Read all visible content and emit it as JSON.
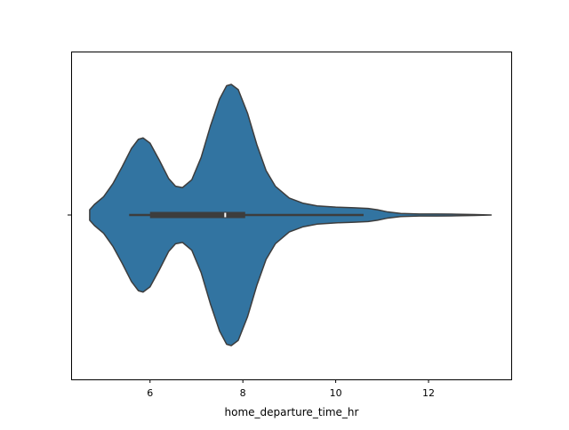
{
  "chart_data": {
    "type": "violin",
    "orientation": "horizontal",
    "title": "",
    "xlabel": "home_departure_time_hr",
    "ylabel": "",
    "xlim": [
      4.3,
      13.8
    ],
    "xticks": [
      6,
      8,
      10,
      12
    ],
    "xtick_labels": [
      "6",
      "8",
      "10",
      "12"
    ],
    "grid": false,
    "legend": "none",
    "colors": {
      "body": "#3274a1",
      "outline": "#3d3d3d",
      "box": "#3d3d3d",
      "median": "#ffffff"
    },
    "box": {
      "whisker_low": 5.55,
      "q1": 6.0,
      "median": 7.62,
      "q3": 8.05,
      "whisker_high": 10.6
    },
    "density_profile": [
      {
        "x": 4.7,
        "w": 0.04
      },
      {
        "x": 4.8,
        "w": 0.08
      },
      {
        "x": 5.0,
        "w": 0.14
      },
      {
        "x": 5.2,
        "w": 0.24
      },
      {
        "x": 5.4,
        "w": 0.37
      },
      {
        "x": 5.6,
        "w": 0.51
      },
      {
        "x": 5.75,
        "w": 0.58
      },
      {
        "x": 5.85,
        "w": 0.59
      },
      {
        "x": 6.0,
        "w": 0.55
      },
      {
        "x": 6.2,
        "w": 0.42
      },
      {
        "x": 6.4,
        "w": 0.28
      },
      {
        "x": 6.55,
        "w": 0.22
      },
      {
        "x": 6.7,
        "w": 0.21
      },
      {
        "x": 6.9,
        "w": 0.27
      },
      {
        "x": 7.1,
        "w": 0.44
      },
      {
        "x": 7.3,
        "w": 0.68
      },
      {
        "x": 7.5,
        "w": 0.89
      },
      {
        "x": 7.65,
        "w": 0.99
      },
      {
        "x": 7.75,
        "w": 1.0
      },
      {
        "x": 7.9,
        "w": 0.96
      },
      {
        "x": 8.1,
        "w": 0.78
      },
      {
        "x": 8.3,
        "w": 0.54
      },
      {
        "x": 8.5,
        "w": 0.34
      },
      {
        "x": 8.7,
        "w": 0.22
      },
      {
        "x": 9.0,
        "w": 0.13
      },
      {
        "x": 9.3,
        "w": 0.09
      },
      {
        "x": 9.6,
        "w": 0.07
      },
      {
        "x": 10.0,
        "w": 0.06
      },
      {
        "x": 10.4,
        "w": 0.055
      },
      {
        "x": 10.7,
        "w": 0.05
      },
      {
        "x": 10.9,
        "w": 0.04
      },
      {
        "x": 11.1,
        "w": 0.025
      },
      {
        "x": 11.4,
        "w": 0.012
      },
      {
        "x": 11.8,
        "w": 0.008
      },
      {
        "x": 12.2,
        "w": 0.008
      },
      {
        "x": 12.6,
        "w": 0.006
      },
      {
        "x": 13.0,
        "w": 0.003
      },
      {
        "x": 13.35,
        "w": 0.0
      }
    ]
  }
}
